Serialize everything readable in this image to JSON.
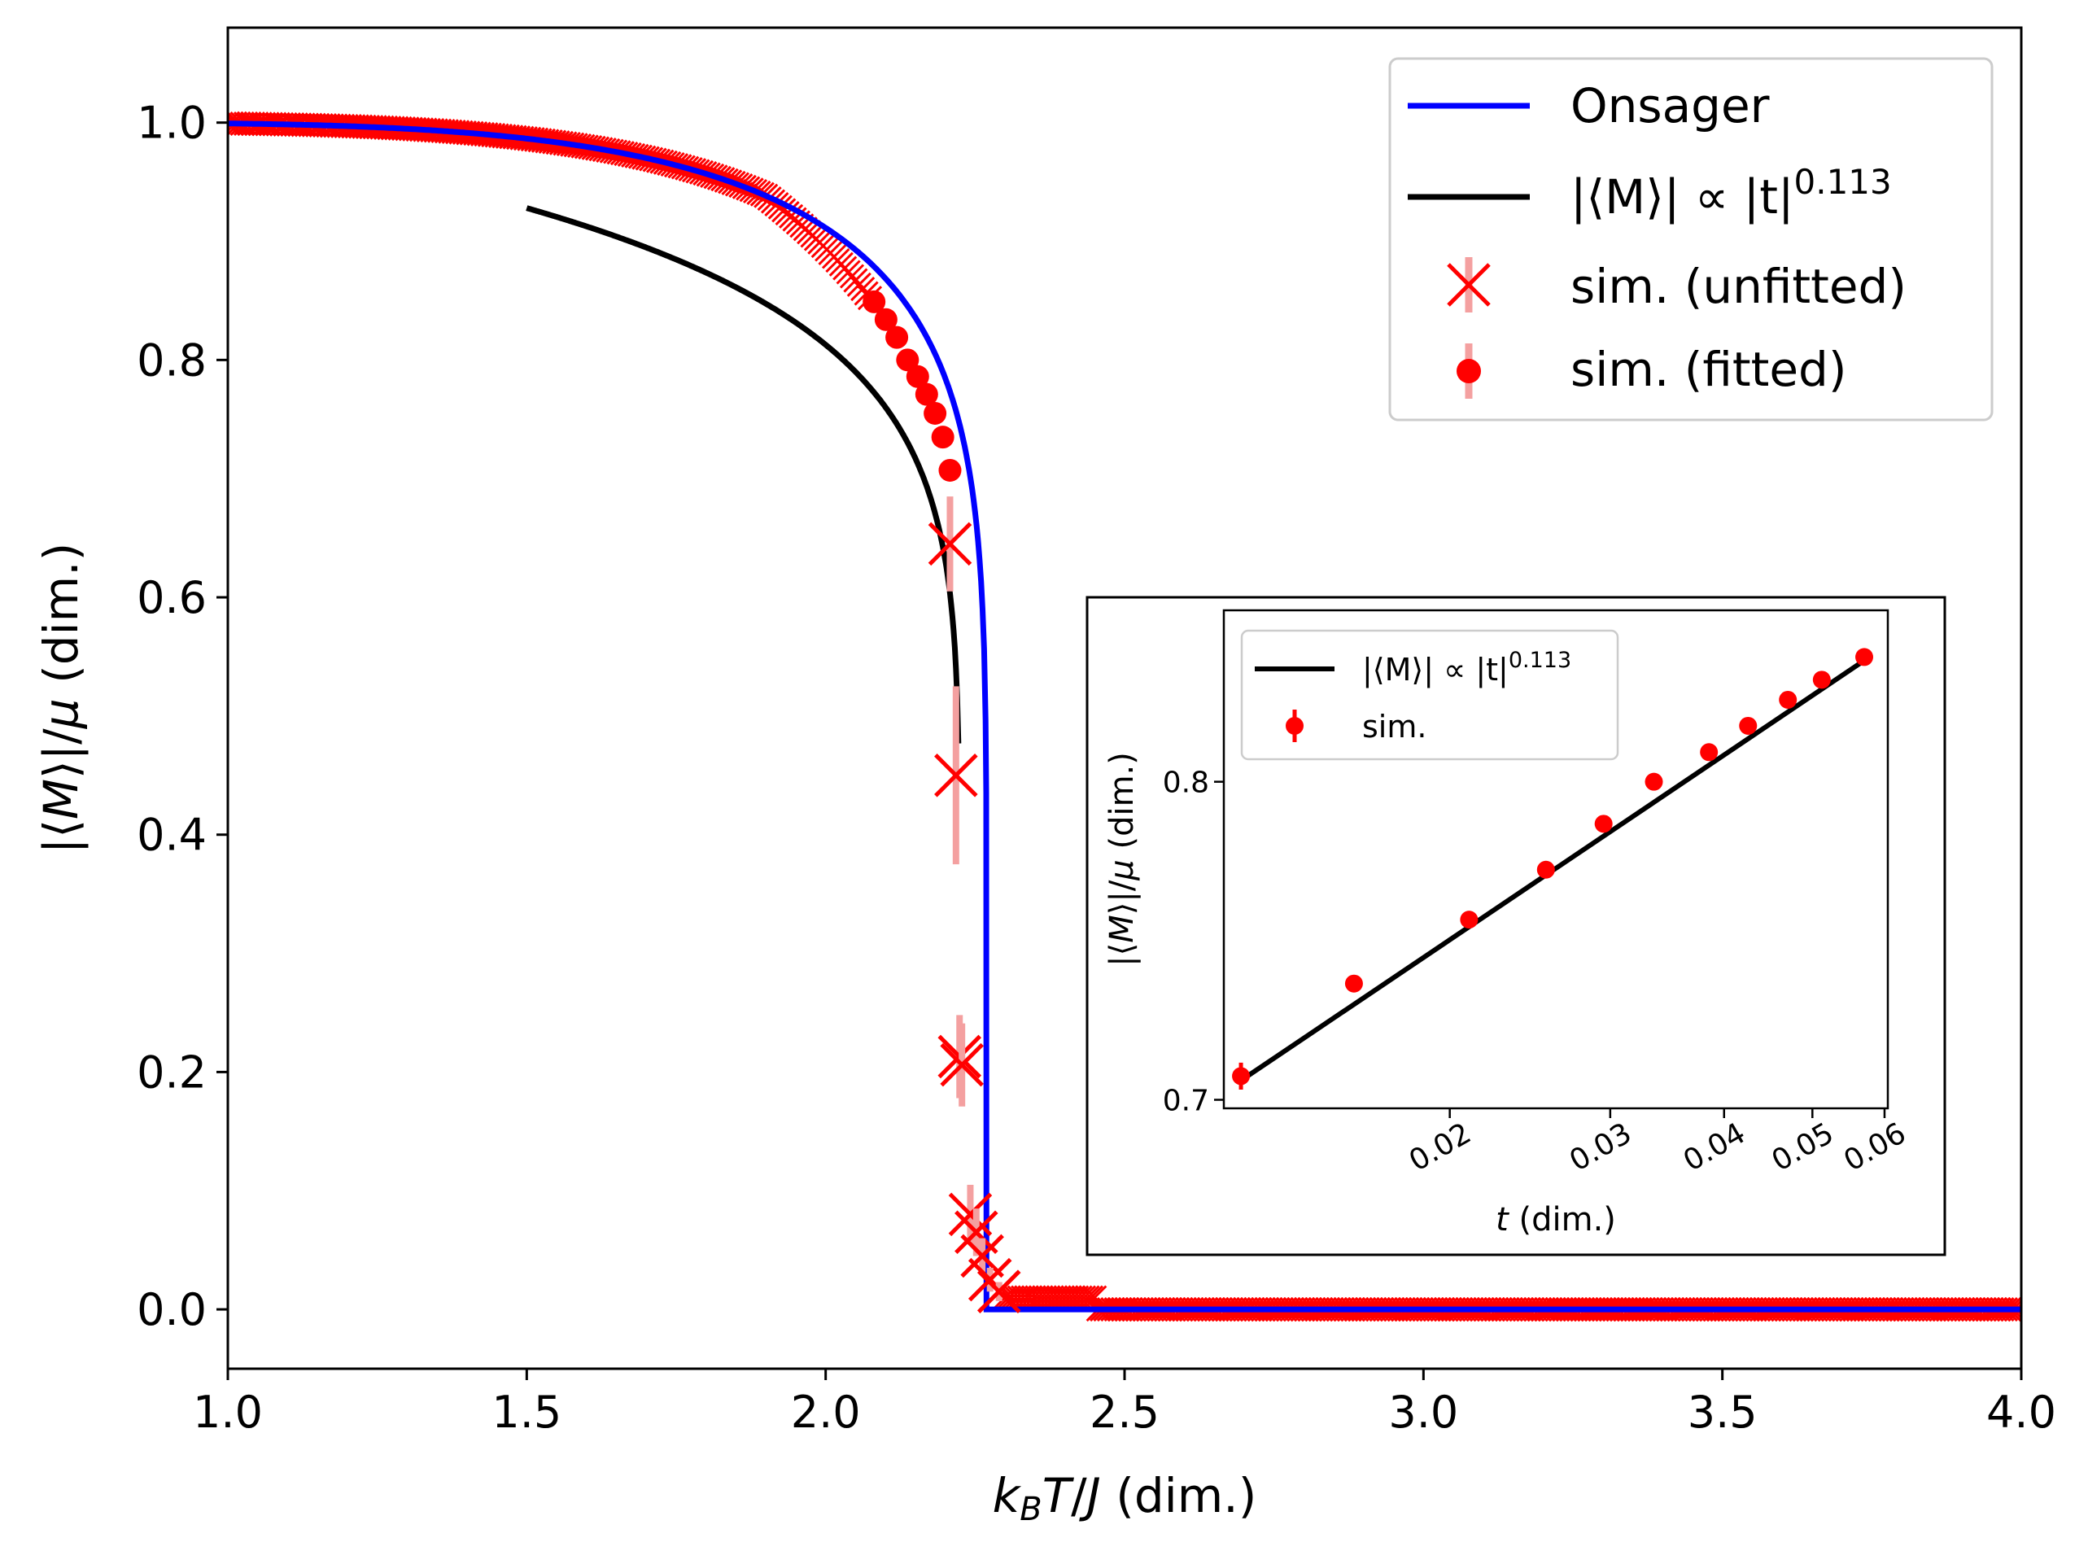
{
  "chart_data": [
    {
      "type": "scatter",
      "xlabel": "k_B T/J (dim.)",
      "ylabel": "|⟨M⟩|/μ (dim.)",
      "xlim": [
        1.0,
        4.0
      ],
      "ylim": [
        -0.05,
        1.08
      ],
      "x_ticks": [
        "1.0",
        "1.5",
        "2.0",
        "2.5",
        "3.0",
        "3.5",
        "4.0"
      ],
      "y_ticks": [
        "0.0",
        "0.2",
        "0.4",
        "0.6",
        "0.8",
        "1.0"
      ],
      "legend_position": "top-right",
      "legend": {
        "onsager": "Onsager",
        "power_law_prefix": "|⟨M⟩| ∝ |t|",
        "power_law_exponent": "0.113",
        "unfitted": "sim. (unfitted)",
        "fitted": "sim. (fitted)"
      },
      "onsager": {
        "name": "Onsager",
        "color": "#0000ff",
        "Tc": 2.269
      },
      "power_law": {
        "color": "#000000",
        "x_range": [
          1.5,
          2.222
        ],
        "Tc_fit": 2.224,
        "amplitude": 1.0535,
        "exponent": 0.113
      },
      "sim_unfitted": {
        "color": "#ff0000",
        "error_color": "#f4a0a0",
        "x": [
          2.208,
          2.218,
          2.224,
          2.228,
          2.242,
          2.252,
          2.262,
          2.275,
          2.29
        ],
        "y": [
          0.645,
          0.45,
          0.213,
          0.206,
          0.08,
          0.065,
          0.045,
          0.025,
          0.015
        ],
        "yerr": [
          0.04,
          0.075,
          0.035,
          0.035,
          0.025,
          0.02,
          0.015,
          0.01,
          0.008
        ]
      },
      "sim_fitted": {
        "color": "#ff0000",
        "x": [
          2.081,
          2.101,
          2.119,
          2.137,
          2.154,
          2.169,
          2.183,
          2.196,
          2.208
        ],
        "y": [
          0.849,
          0.834,
          0.819,
          0.8,
          0.786,
          0.771,
          0.755,
          0.735,
          0.707
        ],
        "yerr": [
          0.003,
          0.003,
          0.003,
          0.003,
          0.003,
          0.003,
          0.004,
          0.004,
          0.006
        ]
      }
    },
    {
      "type": "scatter",
      "xlabel": "t (dim.)",
      "ylabel": "|⟨M⟩|/μ (dim.)",
      "xscale": "log",
      "yscale": "log",
      "xlim": [
        0.0113,
        0.0605
      ],
      "ylim": [
        0.6975,
        0.8597
      ],
      "x_ticks": [
        0.02,
        0.03,
        0.04,
        0.05,
        0.06
      ],
      "x_tick_labels": [
        "0.02",
        "0.03",
        "0.04",
        "0.05",
        "0.06"
      ],
      "y_ticks": [
        0.7,
        0.8
      ],
      "y_tick_labels": [
        "0.7",
        "0.8"
      ],
      "legend_position": "top-left",
      "legend": {
        "power_law_prefix": "|⟨M⟩| ∝ |t|",
        "power_law_exponent": "0.113",
        "sim": "sim."
      },
      "fit_line": {
        "color": "#000000",
        "x": [
          0.0118,
          0.058
        ],
        "y": [
          0.7057,
          0.8434
        ]
      },
      "sim": {
        "color": "#ff0000",
        "x": [
          0.0118,
          0.0157,
          0.021,
          0.0255,
          0.0295,
          0.0335,
          0.0385,
          0.0425,
          0.047,
          0.0512,
          0.057
        ],
        "y": [
          0.707,
          0.735,
          0.755,
          0.771,
          0.786,
          0.8,
          0.81,
          0.819,
          0.828,
          0.835,
          0.843
        ],
        "yerr": [
          0.004,
          0.002,
          0.002,
          0.002,
          0.002,
          0.002,
          0.002,
          0.002,
          0.002,
          0.002,
          0.002
        ]
      }
    }
  ]
}
